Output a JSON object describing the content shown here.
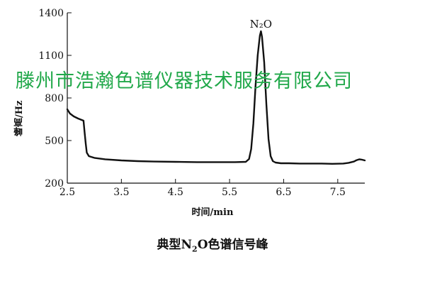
{
  "chart_data": {
    "type": "line",
    "title": "",
    "xlabel": "时间/min",
    "ylabel": "峰高/Hz",
    "xlim": [
      2.5,
      8.0
    ],
    "ylim": [
      200,
      1400
    ],
    "xticks": [
      "2.5",
      "3.5",
      "4.5",
      "5.5",
      "6.5",
      "7.5"
    ],
    "yticks": [
      "200",
      "500",
      "800",
      "1100",
      "1400"
    ],
    "grid": false,
    "annotations": [
      {
        "text": "N₂O",
        "x": 6.08,
        "y": 1295
      }
    ],
    "series": [
      {
        "x": [
          2.5,
          2.55,
          2.62,
          2.7,
          2.8,
          2.82,
          2.84,
          2.86,
          2.9,
          3.0,
          3.2,
          3.5,
          3.8,
          4.1,
          4.5,
          4.9,
          5.3,
          5.6,
          5.8,
          5.86,
          5.9,
          5.94,
          5.98,
          6.02,
          6.06,
          6.08,
          6.1,
          6.14,
          6.18,
          6.22,
          6.26,
          6.3,
          6.35,
          6.45,
          6.6,
          6.8,
          7.0,
          7.2,
          7.4,
          7.6,
          7.7,
          7.8,
          7.85,
          7.9,
          7.95,
          8.0
        ],
        "y": [
          720,
          690,
          670,
          655,
          640,
          560,
          480,
          415,
          390,
          378,
          368,
          360,
          355,
          352,
          350,
          348,
          348,
          348,
          350,
          370,
          440,
          620,
          880,
          1100,
          1240,
          1270,
          1230,
          1050,
          760,
          510,
          390,
          355,
          345,
          340,
          340,
          338,
          338,
          338,
          336,
          338,
          343,
          352,
          362,
          368,
          365,
          360
        ]
      }
    ]
  },
  "watermark": "滕州市浩瀚色谱仪器技术服务有限公司",
  "caption": {
    "prefix": "典型N",
    "sub": "2",
    "suffix": "O色谱信号峰"
  }
}
